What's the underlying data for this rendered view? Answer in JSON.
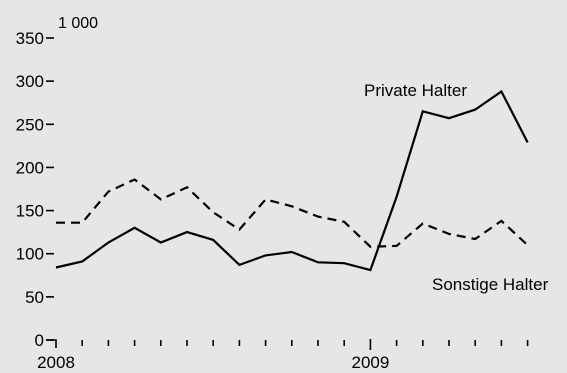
{
  "chart_data": {
    "type": "line",
    "unit_label": "1 000",
    "ylim": [
      0,
      350
    ],
    "yticks": [
      0,
      50,
      100,
      150,
      200,
      250,
      300,
      350
    ],
    "ytick_labels": [
      "0",
      "50",
      "100",
      "150",
      "200",
      "250",
      "300",
      "350"
    ],
    "x_year_labels": [
      {
        "label": "2008",
        "index": 0
      },
      {
        "label": "2009",
        "index": 12
      }
    ],
    "x_points": 19,
    "grid": false,
    "series": [
      {
        "name": "Private Halter",
        "style": "solid",
        "values": [
          84,
          91,
          113,
          130,
          113,
          125,
          116,
          87,
          98,
          102,
          90,
          89,
          81,
          166,
          265,
          257,
          267,
          288,
          229
        ]
      },
      {
        "name": "Sonstige Halter",
        "style": "dashed",
        "values": [
          136,
          136,
          172,
          186,
          163,
          177,
          148,
          128,
          163,
          155,
          143,
          137,
          108,
          109,
          135,
          123,
          117,
          138,
          110
        ]
      }
    ],
    "colors": {
      "background": "#e6e6e6",
      "line": "#000000"
    }
  }
}
